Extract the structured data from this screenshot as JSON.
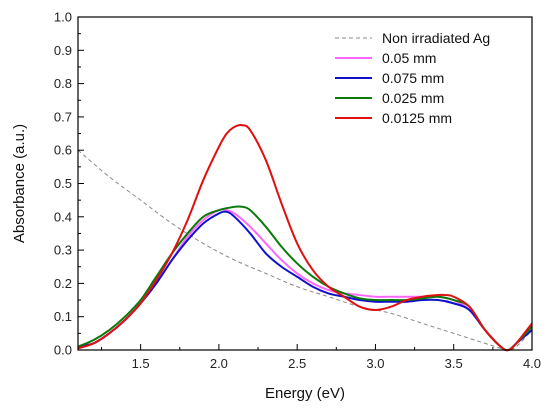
{
  "chart_data": {
    "type": "line",
    "xlabel": "Energy (eV)",
    "ylabel": "Absorbance (a.u.)",
    "xlim": [
      1.1,
      4.0
    ],
    "ylim": [
      0.0,
      1.0
    ],
    "xticks": [
      1.5,
      2.0,
      2.5,
      3.0,
      3.5,
      4.0
    ],
    "yticks": [
      0.0,
      0.1,
      0.2,
      0.3,
      0.4,
      0.5,
      0.6,
      0.7,
      0.8,
      0.9,
      1.0
    ],
    "x_tick_labels": [
      "1.5",
      "2.0",
      "2.5",
      "3.0",
      "3.5",
      "4.0"
    ],
    "y_tick_labels": [
      "0.0",
      "0.1",
      "0.2",
      "0.3",
      "0.4",
      "0.5",
      "0.6",
      "0.7",
      "0.8",
      "0.9",
      "1.0"
    ],
    "legend_position": "top-right",
    "grid": false,
    "series": [
      {
        "name": "Non irradiated Ag",
        "color": "#888888",
        "dashed": true,
        "x": [
          1.1,
          1.3,
          1.5,
          1.7,
          1.9,
          2.1,
          2.3,
          2.5,
          2.7,
          2.9,
          3.1,
          3.3,
          3.5,
          3.7,
          3.8,
          3.85,
          3.9,
          4.0
        ],
        "y": [
          0.6,
          0.52,
          0.45,
          0.38,
          0.32,
          0.27,
          0.23,
          0.19,
          0.16,
          0.13,
          0.11,
          0.08,
          0.05,
          0.02,
          0.005,
          0.0,
          0.01,
          0.06
        ]
      },
      {
        "name": "0.05 mm",
        "color": "#ff66ff",
        "dashed": false,
        "x": [
          1.1,
          1.2,
          1.3,
          1.4,
          1.5,
          1.6,
          1.7,
          1.8,
          1.9,
          2.0,
          2.05,
          2.1,
          2.2,
          2.3,
          2.4,
          2.5,
          2.6,
          2.7,
          2.8,
          2.9,
          3.0,
          3.1,
          3.2,
          3.3,
          3.4,
          3.5,
          3.6,
          3.7,
          3.8,
          3.85,
          3.9,
          4.0
        ],
        "y": [
          0.01,
          0.02,
          0.05,
          0.09,
          0.14,
          0.2,
          0.27,
          0.34,
          0.39,
          0.42,
          0.42,
          0.41,
          0.37,
          0.32,
          0.27,
          0.23,
          0.2,
          0.18,
          0.17,
          0.165,
          0.16,
          0.16,
          0.16,
          0.16,
          0.16,
          0.15,
          0.12,
          0.06,
          0.01,
          0.0,
          0.02,
          0.06
        ]
      },
      {
        "name": "0.075 mm",
        "color": "#1010cc",
        "dashed": false,
        "x": [
          1.1,
          1.2,
          1.3,
          1.4,
          1.5,
          1.6,
          1.7,
          1.8,
          1.9,
          2.0,
          2.05,
          2.1,
          2.2,
          2.3,
          2.4,
          2.5,
          2.6,
          2.7,
          2.8,
          2.9,
          3.0,
          3.1,
          3.2,
          3.3,
          3.4,
          3.5,
          3.6,
          3.7,
          3.8,
          3.85,
          3.9,
          4.0
        ],
        "y": [
          0.01,
          0.02,
          0.05,
          0.09,
          0.14,
          0.2,
          0.27,
          0.33,
          0.38,
          0.41,
          0.415,
          0.4,
          0.35,
          0.29,
          0.25,
          0.22,
          0.19,
          0.17,
          0.16,
          0.15,
          0.145,
          0.145,
          0.145,
          0.15,
          0.15,
          0.14,
          0.12,
          0.06,
          0.01,
          0.0,
          0.02,
          0.06
        ]
      },
      {
        "name": "0.025 mm",
        "color": "#0a7a0a",
        "dashed": false,
        "x": [
          1.1,
          1.2,
          1.3,
          1.4,
          1.5,
          1.6,
          1.7,
          1.8,
          1.9,
          2.0,
          2.1,
          2.15,
          2.2,
          2.3,
          2.4,
          2.5,
          2.6,
          2.7,
          2.8,
          2.9,
          3.0,
          3.1,
          3.2,
          3.3,
          3.4,
          3.5,
          3.6,
          3.7,
          3.8,
          3.85,
          3.9,
          4.0
        ],
        "y": [
          0.01,
          0.03,
          0.06,
          0.1,
          0.15,
          0.22,
          0.29,
          0.35,
          0.4,
          0.42,
          0.43,
          0.43,
          0.42,
          0.37,
          0.31,
          0.26,
          0.22,
          0.19,
          0.17,
          0.155,
          0.15,
          0.15,
          0.15,
          0.155,
          0.16,
          0.15,
          0.13,
          0.06,
          0.01,
          0.0,
          0.02,
          0.07
        ]
      },
      {
        "name": "0.0125 mm",
        "color": "#e01010",
        "dashed": false,
        "x": [
          1.1,
          1.2,
          1.3,
          1.4,
          1.5,
          1.6,
          1.7,
          1.8,
          1.9,
          2.0,
          2.05,
          2.1,
          2.15,
          2.2,
          2.3,
          2.4,
          2.5,
          2.6,
          2.7,
          2.8,
          2.9,
          3.0,
          3.1,
          3.2,
          3.3,
          3.4,
          3.45,
          3.5,
          3.6,
          3.7,
          3.8,
          3.85,
          3.9,
          4.0
        ],
        "y": [
          0.005,
          0.02,
          0.05,
          0.09,
          0.14,
          0.21,
          0.29,
          0.39,
          0.51,
          0.61,
          0.65,
          0.67,
          0.675,
          0.66,
          0.57,
          0.44,
          0.32,
          0.24,
          0.19,
          0.16,
          0.13,
          0.12,
          0.13,
          0.15,
          0.16,
          0.165,
          0.165,
          0.16,
          0.13,
          0.06,
          0.01,
          0.0,
          0.02,
          0.08
        ]
      }
    ]
  }
}
